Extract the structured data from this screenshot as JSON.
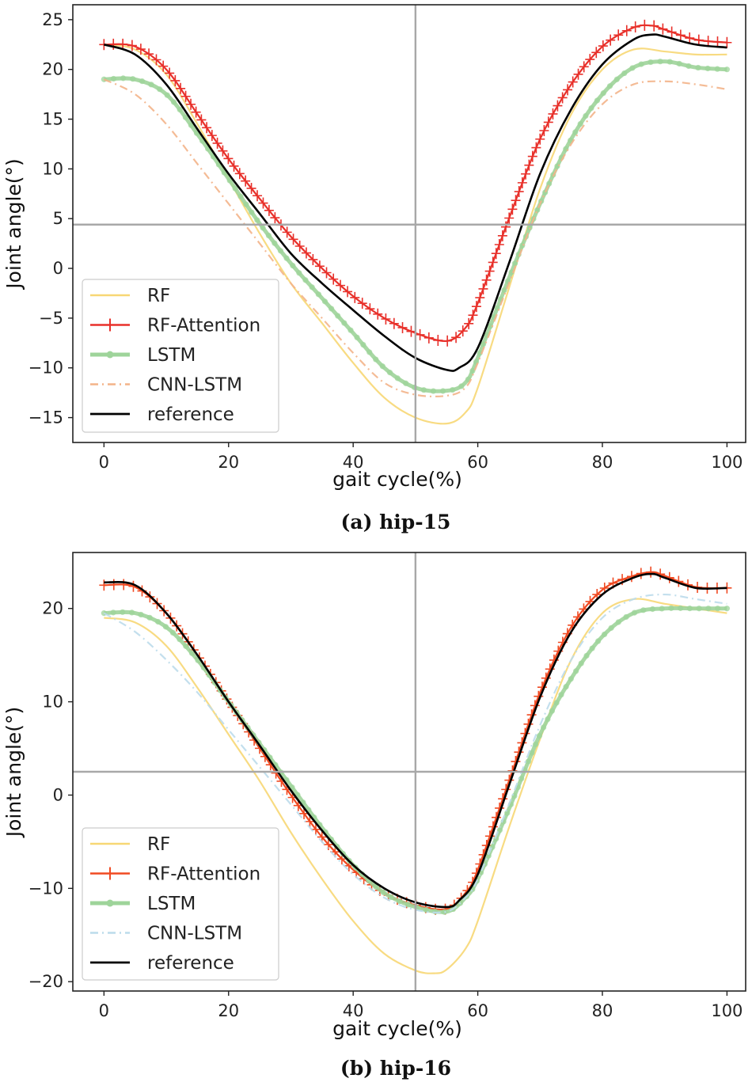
{
  "chart_data": [
    {
      "type": "line",
      "caption": "(a) hip-15",
      "xlabel": "gait cycle(%)",
      "ylabel": "Joint angle(°)",
      "xlim": [
        -5,
        103
      ],
      "ylim": [
        -17.5,
        26.5
      ],
      "xticks": [
        0,
        20,
        40,
        60,
        80,
        100
      ],
      "yticks": [
        25,
        20,
        15,
        10,
        5,
        0,
        -5,
        -10,
        -15
      ],
      "ytick_labels": [
        "25",
        "20",
        "15",
        "10",
        "5",
        "0",
        "−5",
        "−10",
        "−15"
      ],
      "xtick_labels": [
        "0",
        "20",
        "40",
        "60",
        "80",
        "100"
      ],
      "crosshair": {
        "x": 50,
        "y": 4.4
      },
      "legend": {
        "position": "lower-left",
        "entries": [
          "RF",
          "RF-Attention",
          "LSTM",
          "CNN-LSTM",
          "reference"
        ]
      },
      "series": [
        {
          "name": "RF",
          "color": "#f7d774",
          "style": "solid",
          "marker": "none",
          "x": [
            0,
            5,
            10,
            15,
            20,
            25,
            30,
            35,
            40,
            45,
            50,
            55,
            58,
            60,
            65,
            70,
            75,
            80,
            85,
            90,
            95,
            100
          ],
          "y": [
            22.5,
            22.0,
            19.5,
            14.5,
            9.0,
            3.5,
            -1.5,
            -5.5,
            -9.5,
            -13.0,
            -15.0,
            -15.6,
            -14.5,
            -12.0,
            -2.0,
            8.0,
            15.5,
            20.0,
            22.0,
            21.8,
            21.5,
            21.5
          ]
        },
        {
          "name": "RF-Attention",
          "color": "#e8302a",
          "style": "solid",
          "marker": "plus",
          "x": [
            0,
            5,
            10,
            15,
            20,
            25,
            30,
            35,
            40,
            45,
            50,
            55,
            58,
            60,
            65,
            70,
            75,
            80,
            85,
            88,
            90,
            95,
            100
          ],
          "y": [
            22.5,
            22.3,
            20.0,
            15.5,
            11.0,
            7.0,
            3.2,
            0.0,
            -2.8,
            -5.0,
            -6.5,
            -7.3,
            -6.0,
            -3.5,
            5.0,
            13.0,
            18.5,
            22.3,
            24.2,
            24.4,
            24.0,
            23.0,
            22.7
          ]
        },
        {
          "name": "LSTM",
          "color": "#9ed49a",
          "style": "solid",
          "marker": "star",
          "x": [
            0,
            5,
            10,
            15,
            20,
            25,
            30,
            35,
            40,
            45,
            50,
            55,
            58,
            60,
            65,
            70,
            75,
            80,
            85,
            90,
            95,
            100
          ],
          "y": [
            19.0,
            19.0,
            17.5,
            13.5,
            9.0,
            4.5,
            0.5,
            -3.0,
            -6.5,
            -10.0,
            -12.0,
            -12.3,
            -11.5,
            -9.0,
            -1.0,
            6.5,
            13.0,
            17.5,
            20.2,
            20.8,
            20.2,
            20.0
          ]
        },
        {
          "name": "CNN-LSTM",
          "color": "#f3b489",
          "style": "dashdot",
          "marker": "none",
          "x": [
            0,
            5,
            10,
            15,
            20,
            25,
            30,
            35,
            40,
            45,
            50,
            55,
            58,
            60,
            65,
            70,
            75,
            80,
            85,
            90,
            95,
            100
          ],
          "y": [
            19.0,
            17.5,
            14.5,
            10.5,
            6.5,
            2.5,
            -1.5,
            -5.0,
            -8.5,
            -11.5,
            -12.7,
            -12.8,
            -12.0,
            -9.5,
            -1.5,
            6.5,
            12.5,
            16.5,
            18.5,
            18.8,
            18.5,
            18.0
          ]
        },
        {
          "name": "reference",
          "color": "#000000",
          "style": "solid",
          "marker": "none",
          "x": [
            0,
            5,
            10,
            15,
            20,
            25,
            30,
            35,
            40,
            45,
            50,
            55,
            57,
            60,
            65,
            70,
            75,
            80,
            85,
            88,
            90,
            95,
            100
          ],
          "y": [
            22.5,
            21.5,
            18.5,
            14.0,
            9.5,
            5.5,
            1.5,
            -1.5,
            -4.2,
            -6.8,
            -9.0,
            -10.2,
            -10.0,
            -8.0,
            0.5,
            9.5,
            16.0,
            20.5,
            23.0,
            23.5,
            23.3,
            22.5,
            22.2
          ]
        }
      ]
    },
    {
      "type": "line",
      "caption": "(b)  hip-16",
      "xlabel": "gait cycle(%)",
      "ylabel": "Joint angle(°)",
      "xlim": [
        -5,
        103
      ],
      "ylim": [
        -21,
        26
      ],
      "xticks": [
        0,
        20,
        40,
        60,
        80,
        100
      ],
      "yticks": [
        20,
        10,
        0,
        -10,
        -20
      ],
      "ytick_labels": [
        "20",
        "10",
        "0",
        "−10",
        "−20"
      ],
      "xtick_labels": [
        "0",
        "20",
        "40",
        "60",
        "80",
        "100"
      ],
      "crosshair": {
        "x": 50,
        "y": 2.5
      },
      "legend": {
        "position": "lower-left",
        "entries": [
          "RF",
          "RF-Attention",
          "LSTM",
          "CNN-LSTM",
          "reference"
        ]
      },
      "series": [
        {
          "name": "RF",
          "color": "#f7d774",
          "style": "solid",
          "marker": "none",
          "x": [
            0,
            5,
            10,
            15,
            20,
            25,
            30,
            35,
            40,
            45,
            50,
            53,
            55,
            58,
            60,
            65,
            70,
            75,
            80,
            85,
            90,
            95,
            100
          ],
          "y": [
            19.0,
            18.5,
            16.0,
            11.5,
            6.5,
            1.5,
            -4.0,
            -9.0,
            -13.5,
            -17.0,
            -18.8,
            -19.1,
            -18.7,
            -16.5,
            -13.5,
            -3.5,
            6.0,
            14.5,
            19.5,
            21.0,
            20.5,
            20.0,
            19.5
          ]
        },
        {
          "name": "RF-Attention",
          "color": "#f04a22",
          "style": "solid",
          "marker": "plus",
          "x": [
            0,
            5,
            10,
            15,
            20,
            25,
            30,
            35,
            40,
            45,
            50,
            55,
            58,
            60,
            65,
            70,
            75,
            80,
            85,
            88,
            90,
            95,
            100
          ],
          "y": [
            22.5,
            22.3,
            19.5,
            15.0,
            10.0,
            5.0,
            0.0,
            -4.5,
            -8.0,
            -10.5,
            -11.8,
            -12.2,
            -10.5,
            -8.0,
            1.5,
            11.0,
            18.0,
            22.0,
            23.5,
            23.9,
            23.5,
            22.3,
            22.2
          ]
        },
        {
          "name": "LSTM",
          "color": "#9ed49a",
          "style": "solid",
          "marker": "star",
          "x": [
            0,
            5,
            10,
            15,
            20,
            25,
            30,
            35,
            40,
            45,
            50,
            55,
            58,
            60,
            65,
            70,
            75,
            80,
            85,
            90,
            95,
            100
          ],
          "y": [
            19.5,
            19.5,
            18.0,
            14.5,
            10.0,
            5.5,
            1.0,
            -3.5,
            -7.5,
            -10.5,
            -12.0,
            -12.5,
            -11.0,
            -9.0,
            -1.5,
            6.5,
            12.5,
            17.0,
            19.5,
            20.0,
            20.0,
            20.0
          ]
        },
        {
          "name": "CNN-LSTM",
          "color": "#bcdceb",
          "style": "dashdot",
          "marker": "none",
          "x": [
            0,
            5,
            10,
            15,
            20,
            25,
            30,
            35,
            40,
            45,
            50,
            55,
            58,
            60,
            65,
            70,
            75,
            80,
            85,
            90,
            95,
            100
          ],
          "y": [
            19.5,
            17.5,
            14.5,
            11.0,
            7.0,
            3.0,
            -1.0,
            -5.0,
            -8.5,
            -11.0,
            -12.3,
            -12.5,
            -11.0,
            -9.0,
            -1.0,
            7.5,
            14.5,
            19.0,
            21.0,
            21.5,
            21.0,
            20.5
          ]
        },
        {
          "name": "reference",
          "color": "#000000",
          "style": "solid",
          "marker": "none",
          "x": [
            0,
            5,
            10,
            15,
            20,
            25,
            30,
            35,
            40,
            45,
            50,
            55,
            57,
            60,
            65,
            70,
            75,
            80,
            85,
            88,
            90,
            95,
            100
          ],
          "y": [
            22.8,
            22.5,
            19.5,
            15.0,
            10.0,
            5.3,
            0.5,
            -3.8,
            -7.5,
            -10.0,
            -11.5,
            -12.0,
            -11.3,
            -8.5,
            1.0,
            10.5,
            17.5,
            21.5,
            23.3,
            23.7,
            23.3,
            22.2,
            22.2
          ]
        }
      ]
    }
  ]
}
